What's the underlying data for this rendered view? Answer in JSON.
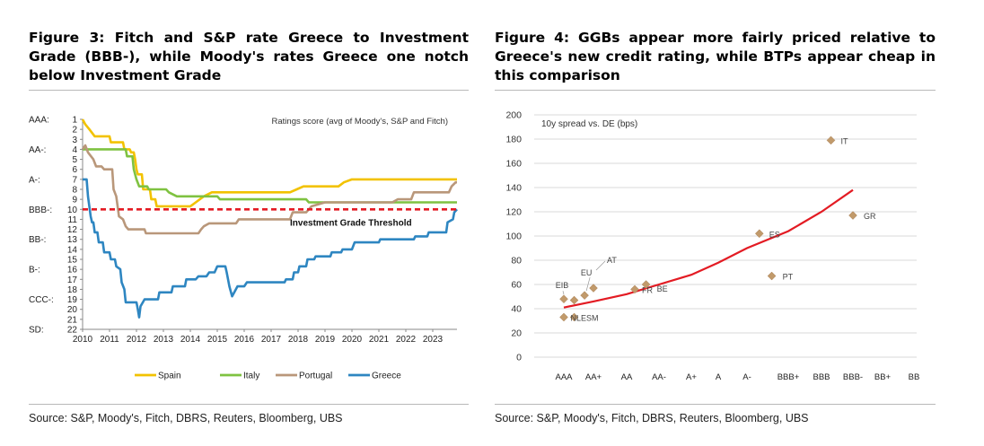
{
  "figures": [
    {
      "title": "Figure 3: Fitch and S&P rate Greece to Investment Grade (BBB-), while Moody's rates Greece one notch below Investment Grade",
      "source": "Source: S&P, Moody's, Fitch, DBRS, Reuters, Bloomberg, UBS"
    },
    {
      "title": "Figure 4: GGBs appear more fairly priced relative to Greece's new credit rating, while BTPs appear cheap in this comparison",
      "source": "Source: S&P, Moody's, Fitch, DBRS, Reuters, Bloomberg, UBS"
    }
  ],
  "chart_data": [
    {
      "type": "line",
      "title": "Ratings score (avg of Moody's, S&P and Fitch)",
      "xlabel": "",
      "ylabel": "",
      "x_ticks": [
        "2010",
        "2011",
        "2012",
        "2013",
        "2014",
        "2015",
        "2016",
        "2017",
        "2018",
        "2019",
        "2020",
        "2021",
        "2022",
        "2023"
      ],
      "xlim": [
        2010,
        2023.9
      ],
      "y_ticks": [
        1,
        2,
        3,
        4,
        5,
        6,
        7,
        8,
        9,
        10,
        11,
        12,
        13,
        14,
        15,
        16,
        17,
        18,
        19,
        20,
        21,
        22
      ],
      "ylim": [
        1,
        22
      ],
      "y_inverted": true,
      "rating_labels": [
        {
          "label": "AAA:",
          "score": 1
        },
        {
          "label": "AA-:",
          "score": 4
        },
        {
          "label": "A-:",
          "score": 7
        },
        {
          "label": "BBB-:",
          "score": 10
        },
        {
          "label": "BB-:",
          "score": 13
        },
        {
          "label": "B-:",
          "score": 16
        },
        {
          "label": "CCC-:",
          "score": 19
        },
        {
          "label": "SD:",
          "score": 22
        }
      ],
      "threshold": {
        "value": 10,
        "label": "Investment Grade Threshold",
        "color": "#e31b23"
      },
      "grid": false,
      "legend_position": "bottom",
      "series": [
        {
          "name": "Spain",
          "color": "#f2c200",
          "points": [
            [
              2010.0,
              1
            ],
            [
              2010.1,
              1.5
            ],
            [
              2010.25,
              2
            ],
            [
              2010.45,
              2.7
            ],
            [
              2011.0,
              2.7
            ],
            [
              2011.05,
              3.3
            ],
            [
              2011.5,
              3.3
            ],
            [
              2011.55,
              4
            ],
            [
              2011.75,
              4
            ],
            [
              2011.8,
              4.3
            ],
            [
              2011.9,
              4.3
            ],
            [
              2011.95,
              5
            ],
            [
              2012.0,
              6
            ],
            [
              2012.05,
              6.5
            ],
            [
              2012.2,
              6.5
            ],
            [
              2012.25,
              8
            ],
            [
              2012.5,
              8
            ],
            [
              2012.55,
              9
            ],
            [
              2012.7,
              9
            ],
            [
              2012.75,
              9.7
            ],
            [
              2013.5,
              9.7
            ],
            [
              2014.0,
              9.7
            ],
            [
              2014.2,
              9.3
            ],
            [
              2014.5,
              8.7
            ],
            [
              2014.8,
              8.3
            ],
            [
              2017.7,
              8.3
            ],
            [
              2017.95,
              8
            ],
            [
              2018.2,
              7.7
            ],
            [
              2019.5,
              7.7
            ],
            [
              2019.7,
              7.3
            ],
            [
              2020.0,
              7
            ],
            [
              2023.9,
              7
            ]
          ]
        },
        {
          "name": "Italy",
          "color": "#7fc241",
          "points": [
            [
              2010.0,
              4
            ],
            [
              2011.6,
              4
            ],
            [
              2011.65,
              4.7
            ],
            [
              2011.85,
              4.7
            ],
            [
              2011.9,
              6
            ],
            [
              2012.0,
              7
            ],
            [
              2012.1,
              7.7
            ],
            [
              2012.4,
              7.7
            ],
            [
              2012.45,
              8
            ],
            [
              2013.1,
              8
            ],
            [
              2013.2,
              8.3
            ],
            [
              2013.5,
              8.7
            ],
            [
              2015.0,
              8.7
            ],
            [
              2015.1,
              9
            ],
            [
              2018.3,
              9
            ],
            [
              2018.4,
              9.3
            ],
            [
              2023.9,
              9.3
            ]
          ]
        },
        {
          "name": "Portugal",
          "color": "#b9977a",
          "points": [
            [
              2010.0,
              4
            ],
            [
              2010.1,
              3.6
            ],
            [
              2010.2,
              4.3
            ],
            [
              2010.4,
              5
            ],
            [
              2010.5,
              5.7
            ],
            [
              2010.7,
              5.7
            ],
            [
              2010.8,
              6
            ],
            [
              2011.1,
              6
            ],
            [
              2011.15,
              8
            ],
            [
              2011.25,
              8.7
            ],
            [
              2011.35,
              10.7
            ],
            [
              2011.5,
              11
            ],
            [
              2011.6,
              11.7
            ],
            [
              2011.7,
              12
            ],
            [
              2012.3,
              12
            ],
            [
              2012.35,
              12.4
            ],
            [
              2014.3,
              12.4
            ],
            [
              2014.4,
              12
            ],
            [
              2014.5,
              11.7
            ],
            [
              2014.7,
              11.4
            ],
            [
              2015.7,
              11.4
            ],
            [
              2015.8,
              11
            ],
            [
              2017.7,
              11
            ],
            [
              2017.8,
              10.3
            ],
            [
              2018.3,
              10.3
            ],
            [
              2018.5,
              9.7
            ],
            [
              2019.0,
              9.3
            ],
            [
              2020.7,
              9.3
            ],
            [
              2021.5,
              9.3
            ],
            [
              2021.7,
              9
            ],
            [
              2022.2,
              9
            ],
            [
              2022.3,
              8.3
            ],
            [
              2023.6,
              8.3
            ],
            [
              2023.7,
              7.7
            ],
            [
              2023.85,
              7.3
            ],
            [
              2023.9,
              7.3
            ]
          ]
        },
        {
          "name": "Greece",
          "color": "#2e86c1",
          "points": [
            [
              2010.0,
              7
            ],
            [
              2010.15,
              7
            ],
            [
              2010.2,
              8.7
            ],
            [
              2010.3,
              10.7
            ],
            [
              2010.35,
              11.3
            ],
            [
              2010.4,
              11.3
            ],
            [
              2010.45,
              12.3
            ],
            [
              2010.55,
              12.3
            ],
            [
              2010.6,
              13.3
            ],
            [
              2010.75,
              13.3
            ],
            [
              2010.8,
              14.3
            ],
            [
              2011.0,
              14.3
            ],
            [
              2011.05,
              15
            ],
            [
              2011.2,
              15
            ],
            [
              2011.25,
              15.7
            ],
            [
              2011.4,
              16
            ],
            [
              2011.45,
              17.3
            ],
            [
              2011.55,
              18
            ],
            [
              2011.6,
              19.3
            ],
            [
              2012.0,
              19.3
            ],
            [
              2012.05,
              20
            ],
            [
              2012.1,
              20.8
            ],
            [
              2012.15,
              19.7
            ],
            [
              2012.3,
              19
            ],
            [
              2012.8,
              19
            ],
            [
              2012.85,
              18.3
            ],
            [
              2013.3,
              18.3
            ],
            [
              2013.35,
              17.7
            ],
            [
              2013.8,
              17.7
            ],
            [
              2013.85,
              17
            ],
            [
              2014.2,
              17
            ],
            [
              2014.3,
              16.7
            ],
            [
              2014.6,
              16.7
            ],
            [
              2014.7,
              16.3
            ],
            [
              2014.9,
              16.3
            ],
            [
              2015.0,
              15.7
            ],
            [
              2015.3,
              15.7
            ],
            [
              2015.35,
              16.3
            ],
            [
              2015.45,
              17.7
            ],
            [
              2015.55,
              18.7
            ],
            [
              2015.65,
              18.2
            ],
            [
              2015.75,
              17.7
            ],
            [
              2016.0,
              17.7
            ],
            [
              2016.1,
              17.3
            ],
            [
              2017.5,
              17.3
            ],
            [
              2017.55,
              17
            ],
            [
              2017.8,
              17
            ],
            [
              2017.85,
              16.3
            ],
            [
              2018.0,
              16.3
            ],
            [
              2018.05,
              15.7
            ],
            [
              2018.3,
              15.7
            ],
            [
              2018.35,
              15
            ],
            [
              2018.6,
              15
            ],
            [
              2018.65,
              14.7
            ],
            [
              2019.2,
              14.7
            ],
            [
              2019.25,
              14.3
            ],
            [
              2019.6,
              14.3
            ],
            [
              2019.65,
              14
            ],
            [
              2020.0,
              14
            ],
            [
              2020.1,
              13.3
            ],
            [
              2021.0,
              13.3
            ],
            [
              2021.05,
              13
            ],
            [
              2022.3,
              13
            ],
            [
              2022.35,
              12.7
            ],
            [
              2022.8,
              12.7
            ],
            [
              2022.85,
              12.3
            ],
            [
              2023.5,
              12.3
            ],
            [
              2023.55,
              11.3
            ],
            [
              2023.75,
              11
            ],
            [
              2023.8,
              10.3
            ],
            [
              2023.9,
              10
            ]
          ]
        }
      ]
    },
    {
      "type": "scatter",
      "title": "10y spread vs. DE (bps)",
      "xlabel": "",
      "ylabel": "",
      "x_categories": [
        "AAA",
        "AA+",
        "AA",
        "AA-",
        "A+",
        "A",
        "A-",
        "BBB+",
        "BBB",
        "BBB-",
        "BB+",
        "BB"
      ],
      "ylim": [
        0,
        200
      ],
      "y_ticks": [
        0,
        20,
        40,
        60,
        80,
        100,
        120,
        140,
        160,
        180,
        200
      ],
      "grid": true,
      "marker_color": "#c19a6b",
      "trend_color": "#e31b23",
      "points": [
        {
          "label": "EIB",
          "rating_index": 0,
          "value": 48
        },
        {
          "label": "",
          "rating_index": 0,
          "value": 33
        },
        {
          "label": "",
          "rating_index": 0.35,
          "value": 47
        },
        {
          "label": "NLESM",
          "rating_index": 0.35,
          "value": 33
        },
        {
          "label": "EU",
          "rating_index": 0.7,
          "value": 51
        },
        {
          "label": "AT",
          "rating_index": 1.0,
          "value": 57
        },
        {
          "label": "FR",
          "rating_index": 2.25,
          "value": 56
        },
        {
          "label": "BE",
          "rating_index": 2.6,
          "value": 60
        },
        {
          "label": "ES",
          "rating_index": 6.3,
          "value": 102
        },
        {
          "label": "PT",
          "rating_index": 6.6,
          "value": 67
        },
        {
          "label": "IT",
          "rating_index": 8.3,
          "value": 179
        },
        {
          "label": "GR",
          "rating_index": 9.0,
          "value": 117
        }
      ],
      "trend_points": [
        [
          0,
          41
        ],
        [
          1,
          46
        ],
        [
          2,
          52
        ],
        [
          3,
          60
        ],
        [
          4,
          68
        ],
        [
          5,
          78
        ],
        [
          6,
          90
        ],
        [
          7,
          104
        ],
        [
          8,
          120
        ],
        [
          9,
          138
        ]
      ]
    }
  ]
}
